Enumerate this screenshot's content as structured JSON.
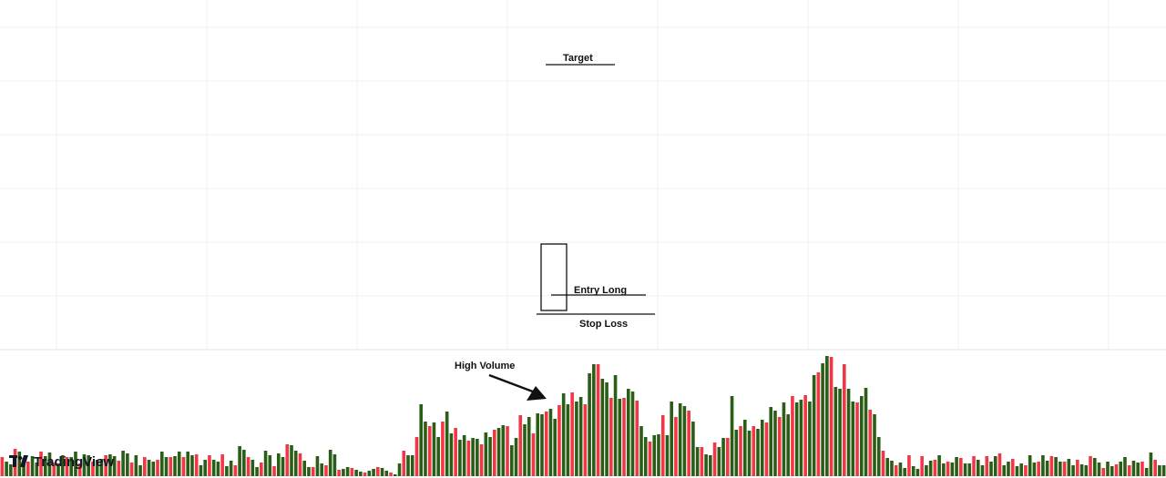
{
  "colors": {
    "up": "#2a5d16",
    "down": "#f23645",
    "grid": "#f0f0f0",
    "separator": "#e6e6e6",
    "annotation": "#111111"
  },
  "branding": {
    "logo_text": "TradingView",
    "logo_icon": "tradingview-logo-icon"
  },
  "annotations": {
    "target": "Target",
    "entry": "Entry Long",
    "stop": "Stop Loss",
    "volume": "High Volume"
  },
  "chart_data": {
    "type": "candlestick",
    "grid": true,
    "price_range": [
      0,
      400
    ],
    "volume_range": [
      0,
      130
    ],
    "candles": [
      [
        0,
        0,
        0,
        0
      ],
      [
        0,
        0,
        0,
        0
      ],
      [
        0,
        0,
        0,
        0
      ],
      [
        0,
        0,
        0,
        0
      ],
      [
        0,
        0,
        0,
        0
      ],
      [
        0,
        0,
        0,
        0
      ],
      [
        0,
        0,
        0,
        0
      ],
      [
        0,
        0,
        0,
        0
      ],
      [
        0,
        0,
        0,
        0
      ],
      [
        0,
        0,
        0,
        0
      ],
      [
        0,
        0,
        0,
        0
      ],
      [
        0,
        0,
        0,
        0
      ],
      [
        0,
        0,
        0,
        0
      ],
      [
        0,
        0,
        0,
        0
      ],
      [
        0,
        0,
        0,
        0
      ],
      [
        0,
        0,
        0,
        0
      ],
      [
        0,
        0,
        0,
        0
      ],
      [
        0,
        0,
        0,
        0
      ],
      [
        0,
        0,
        0,
        0
      ],
      [
        0,
        0,
        0,
        0
      ],
      [
        0,
        0,
        0,
        0
      ],
      [
        0,
        0,
        0,
        0
      ],
      [
        0,
        0,
        0,
        0
      ],
      [
        0,
        0,
        0,
        0
      ],
      [
        0,
        0,
        0,
        0
      ],
      [
        0,
        0,
        0,
        0
      ],
      [
        0,
        0,
        0,
        0
      ],
      [
        0,
        0,
        0,
        0
      ],
      [
        0,
        0,
        0,
        0
      ],
      [
        0,
        0,
        0,
        0
      ],
      [
        0,
        0,
        0,
        0
      ],
      [
        0,
        0,
        0,
        0
      ],
      [
        0,
        0,
        0,
        0
      ],
      [
        0,
        0,
        0,
        0
      ],
      [
        0,
        0,
        0,
        0
      ],
      [
        0,
        0,
        0,
        0
      ],
      [
        0,
        0,
        0,
        0
      ],
      [
        0,
        0,
        0,
        0
      ],
      [
        0,
        0,
        0,
        0
      ],
      [
        0,
        0,
        0,
        0
      ],
      [
        0,
        0,
        0,
        0
      ],
      [
        0,
        0,
        0,
        0
      ],
      [
        0,
        0,
        0,
        0
      ],
      [
        0,
        0,
        0,
        0
      ],
      [
        0,
        0,
        0,
        0
      ],
      [
        0,
        0,
        0,
        0
      ],
      [
        0,
        0,
        0,
        0
      ],
      [
        0,
        0,
        0,
        0
      ],
      [
        0,
        0,
        0,
        0
      ],
      [
        0,
        0,
        0,
        0
      ],
      [
        0,
        0,
        0,
        0
      ],
      [
        0,
        0,
        0,
        0
      ],
      [
        0,
        0,
        0,
        0
      ],
      [
        0,
        0,
        0,
        0
      ],
      [
        0,
        0,
        0,
        0
      ],
      [
        0,
        0,
        0,
        0
      ],
      [
        0,
        0,
        0,
        0
      ],
      [
        0,
        0,
        0,
        0
      ],
      [
        0,
        0,
        0,
        0
      ],
      [
        0,
        0,
        0,
        0
      ],
      [
        0,
        0,
        0,
        0
      ],
      [
        0,
        0,
        0,
        0
      ],
      [
        0,
        0,
        0,
        0
      ],
      [
        0,
        0,
        0,
        0
      ],
      [
        0,
        0,
        0,
        0
      ],
      [
        0,
        0,
        0,
        0
      ],
      [
        0,
        0,
        0,
        0
      ],
      [
        0,
        0,
        0,
        0
      ],
      [
        0,
        0,
        0,
        0
      ],
      [
        0,
        0,
        0,
        0
      ],
      [
        0,
        0,
        0,
        0
      ],
      [
        0,
        0,
        0,
        0
      ],
      [
        0,
        0,
        0,
        0
      ],
      [
        0,
        0,
        0,
        0
      ],
      [
        0,
        0,
        0,
        0
      ],
      [
        0,
        0,
        0,
        0
      ],
      [
        0,
        0,
        0,
        0
      ],
      [
        0,
        0,
        0,
        0
      ],
      [
        0,
        0,
        0,
        0
      ],
      [
        0,
        0,
        0,
        0
      ],
      [
        0,
        0,
        0,
        0
      ],
      [
        0,
        0,
        0,
        0
      ],
      [
        0,
        0,
        0,
        0
      ],
      [
        0,
        0,
        0,
        0
      ],
      [
        0,
        0,
        0,
        0
      ],
      [
        0,
        0,
        0,
        0
      ],
      [
        0,
        0,
        0,
        0
      ],
      [
        0,
        0,
        0,
        0
      ],
      [
        0,
        0,
        0,
        0
      ],
      [
        0,
        0,
        0,
        0
      ],
      [
        0,
        0,
        0,
        0
      ],
      [
        0,
        0,
        0,
        0
      ],
      [
        0,
        0,
        0,
        0
      ],
      [
        0,
        0,
        0,
        0
      ],
      [
        0,
        0,
        0,
        0
      ],
      [
        0,
        0,
        0,
        0
      ],
      [
        0,
        0,
        0,
        0
      ],
      [
        0,
        0,
        0,
        0
      ],
      [
        0,
        0,
        0,
        0
      ],
      [
        0,
        0,
        0,
        0
      ],
      [
        0,
        0,
        0,
        0
      ],
      [
        0,
        0,
        0,
        0
      ],
      [
        0,
        0,
        0,
        0
      ],
      [
        0,
        0,
        0,
        0
      ],
      [
        0,
        0,
        0,
        0
      ],
      [
        0,
        0,
        0,
        0
      ],
      [
        0,
        0,
        0,
        0
      ],
      [
        0,
        0,
        0,
        0
      ],
      [
        0,
        0,
        0,
        0
      ],
      [
        0,
        0,
        0,
        0
      ],
      [
        0,
        0,
        0,
        0
      ],
      [
        0,
        0,
        0,
        0
      ],
      [
        0,
        0,
        0,
        0
      ],
      [
        0,
        0,
        0,
        0
      ],
      [
        0,
        0,
        0,
        0
      ],
      [
        0,
        0,
        0,
        0
      ],
      [
        0,
        0,
        0,
        0
      ],
      [
        0,
        0,
        0,
        0
      ],
      [
        0,
        0,
        0,
        0
      ],
      [
        0,
        0,
        0,
        0
      ],
      [
        0,
        0,
        0,
        0
      ],
      [
        0,
        0,
        0,
        0
      ],
      [
        0,
        0,
        0,
        0
      ],
      [
        0,
        0,
        0,
        0
      ],
      [
        0,
        0,
        0,
        0
      ],
      [
        0,
        0,
        0,
        0
      ],
      [
        0,
        0,
        0,
        0
      ],
      [
        0,
        0,
        0,
        0
      ],
      [
        0,
        0,
        0,
        0
      ],
      [
        0,
        0,
        0,
        0
      ],
      [
        0,
        0,
        0,
        0
      ],
      [
        0,
        0,
        0,
        0
      ],
      [
        0,
        0,
        0,
        0
      ],
      [
        0,
        0,
        0,
        0
      ],
      [
        0,
        0,
        0,
        0
      ],
      [
        0,
        0,
        0,
        0
      ],
      [
        0,
        0,
        0,
        0
      ],
      [
        0,
        0,
        0,
        0
      ],
      [
        0,
        0,
        0,
        0
      ],
      [
        0,
        0,
        0,
        0
      ],
      [
        0,
        0,
        0,
        0
      ],
      [
        0,
        0,
        0,
        0
      ],
      [
        0,
        0,
        0,
        0
      ],
      [
        0,
        0,
        0,
        0
      ],
      [
        0,
        0,
        0,
        0
      ],
      [
        0,
        0,
        0,
        0
      ],
      [
        0,
        0,
        0,
        0
      ],
      [
        0,
        0,
        0,
        0
      ],
      [
        0,
        0,
        0,
        0
      ],
      [
        0,
        0,
        0,
        0
      ],
      [
        0,
        0,
        0,
        0
      ],
      [
        0,
        0,
        0,
        0
      ],
      [
        0,
        0,
        0,
        0
      ],
      [
        0,
        0,
        0,
        0
      ],
      [
        0,
        0,
        0,
        0
      ],
      [
        0,
        0,
        0,
        0
      ],
      [
        0,
        0,
        0,
        0
      ],
      [
        0,
        0,
        0,
        0
      ],
      [
        0,
        0,
        0,
        0
      ],
      [
        0,
        0,
        0,
        0
      ],
      [
        0,
        0,
        0,
        0
      ],
      [
        0,
        0,
        0,
        0
      ],
      [
        0,
        0,
        0,
        0
      ],
      [
        0,
        0,
        0,
        0
      ],
      [
        0,
        0,
        0,
        0
      ],
      [
        0,
        0,
        0,
        0
      ],
      [
        0,
        0,
        0,
        0
      ],
      [
        0,
        0,
        0,
        0
      ],
      [
        0,
        0,
        0,
        0
      ],
      [
        0,
        0,
        0,
        0
      ],
      [
        0,
        0,
        0,
        0
      ],
      [
        0,
        0,
        0,
        0
      ],
      [
        0,
        0,
        0,
        0
      ],
      [
        0,
        0,
        0,
        0
      ],
      [
        0,
        0,
        0,
        0
      ],
      [
        0,
        0,
        0,
        0
      ],
      [
        0,
        0,
        0,
        0
      ],
      [
        0,
        0,
        0,
        0
      ],
      [
        0,
        0,
        0,
        0
      ],
      [
        0,
        0,
        0,
        0
      ],
      [
        0,
        0,
        0,
        0
      ],
      [
        0,
        0,
        0,
        0
      ],
      [
        0,
        0,
        0,
        0
      ],
      [
        0,
        0,
        0,
        0
      ],
      [
        0,
        0,
        0,
        0
      ],
      [
        0,
        0,
        0,
        0
      ],
      [
        0,
        0,
        0,
        0
      ],
      [
        0,
        0,
        0,
        0
      ],
      [
        0,
        0,
        0,
        0
      ],
      [
        0,
        0,
        0,
        0
      ],
      [
        0,
        0,
        0,
        0
      ],
      [
        0,
        0,
        0,
        0
      ],
      [
        0,
        0,
        0,
        0
      ],
      [
        0,
        0,
        0,
        0
      ],
      [
        0,
        0,
        0,
        0
      ],
      [
        0,
        0,
        0,
        0
      ],
      [
        0,
        0,
        0,
        0
      ],
      [
        0,
        0,
        0,
        0
      ],
      [
        0,
        0,
        0,
        0
      ],
      [
        0,
        0,
        0,
        0
      ],
      [
        0,
        0,
        0,
        0
      ],
      [
        0,
        0,
        0,
        0
      ],
      [
        0,
        0,
        0,
        0
      ],
      [
        0,
        0,
        0,
        0
      ],
      [
        0,
        0,
        0,
        0
      ],
      [
        0,
        0,
        0,
        0
      ],
      [
        0,
        0,
        0,
        0
      ],
      [
        0,
        0,
        0,
        0
      ],
      [
        0,
        0,
        0,
        0
      ],
      [
        0,
        0,
        0,
        0
      ],
      [
        0,
        0,
        0,
        0
      ],
      [
        0,
        0,
        0,
        0
      ],
      [
        0,
        0,
        0,
        0
      ],
      [
        0,
        0,
        0,
        0
      ],
      [
        0,
        0,
        0,
        0
      ],
      [
        0,
        0,
        0,
        0
      ],
      [
        0,
        0,
        0,
        0
      ],
      [
        0,
        0,
        0,
        0
      ],
      [
        0,
        0,
        0,
        0
      ],
      [
        0,
        0,
        0,
        0
      ],
      [
        0,
        0,
        0,
        0
      ],
      [
        0,
        0,
        0,
        0
      ],
      [
        0,
        0,
        0,
        0
      ],
      [
        0,
        0,
        0,
        0
      ],
      [
        0,
        0,
        0,
        0
      ],
      [
        0,
        0,
        0,
        0
      ],
      [
        0,
        0,
        0,
        0
      ],
      [
        0,
        0,
        0,
        0
      ],
      [
        0,
        0,
        0,
        0
      ],
      [
        0,
        0,
        0,
        0
      ],
      [
        0,
        0,
        0,
        0
      ],
      [
        0,
        0,
        0,
        0
      ],
      [
        0,
        0,
        0,
        0
      ],
      [
        0,
        0,
        0,
        0
      ],
      [
        0,
        0,
        0,
        0
      ],
      [
        0,
        0,
        0,
        0
      ],
      [
        0,
        0,
        0,
        0
      ],
      [
        0,
        0,
        0,
        0
      ],
      [
        0,
        0,
        0,
        0
      ],
      [
        0,
        0,
        0,
        0
      ],
      [
        0,
        0,
        0,
        0
      ],
      [
        0,
        0,
        0,
        0
      ],
      [
        0,
        0,
        0,
        0
      ],
      [
        0,
        0,
        0,
        0
      ],
      [
        0,
        0,
        0,
        0
      ],
      [
        0,
        0,
        0,
        0
      ],
      [
        0,
        0,
        0,
        0
      ],
      [
        0,
        0,
        0,
        0
      ],
      [
        0,
        0,
        0,
        0
      ],
      [
        0,
        0,
        0,
        0
      ],
      [
        0,
        0,
        0,
        0
      ],
      [
        0,
        0,
        0,
        0
      ]
    ],
    "volume": [
      21,
      16,
      13,
      30,
      27,
      20,
      16,
      22,
      15,
      27,
      22,
      26,
      15,
      14,
      23,
      21,
      21,
      27,
      14,
      24,
      23,
      16,
      18,
      19,
      23,
      24,
      22,
      17,
      28,
      25,
      15,
      23,
      12,
      21,
      18,
      16,
      18,
      27,
      21,
      21,
      22,
      27,
      21,
      27,
      23,
      24,
      12,
      18,
      23,
      18,
      16,
      24,
      11,
      17,
      12,
      33,
      29,
      21,
      18,
      10,
      15,
      28,
      23,
      11,
      25,
      21,
      35,
      34,
      28,
      25,
      17,
      10,
      10,
      22,
      14,
      12,
      29,
      24,
      7,
      8,
      10,
      9,
      7,
      5,
      4,
      6,
      8,
      10,
      9,
      6,
      4,
      2,
      14,
      28,
      23,
      23,
      43,
      79,
      60,
      55,
      59,
      43,
      60,
      71,
      47,
      53,
      40,
      45,
      39,
      42,
      41,
      35,
      48,
      43,
      51,
      53,
      56,
      55,
      34,
      42,
      67,
      57,
      65,
      47,
      69,
      68,
      71,
      74,
      63,
      78,
      91,
      79,
      92,
      82,
      87,
      79,
      113,
      123,
      123,
      107,
      103,
      86,
      111,
      85,
      86,
      96,
      93,
      83,
      55,
      43,
      38,
      45,
      46,
      67,
      45,
      82,
      65,
      80,
      77,
      72,
      60,
      32,
      32,
      24,
      23,
      37,
      32,
      42,
      42,
      88,
      51,
      55,
      62,
      50,
      55,
      52,
      62,
      59,
      76,
      72,
      65,
      81,
      68,
      88,
      81,
      84,
      89,
      82,
      111,
      114,
      124,
      132,
      131,
      98,
      96,
      123,
      96,
      82,
      81,
      88,
      97,
      73,
      68,
      43,
      28,
      20,
      17,
      12,
      15,
      9,
      23,
      11,
      8,
      22,
      12,
      17,
      18,
      23,
      14,
      16,
      15,
      21,
      20,
      14,
      14,
      22,
      18,
      12,
      22,
      16,
      22,
      25,
      12,
      16,
      19,
      11,
      14,
      12,
      23,
      15,
      16,
      23,
      17,
      22,
      21,
      16,
      16,
      19,
      12,
      18,
      13,
      12,
      22,
      20,
      15,
      9,
      16,
      11,
      13,
      16,
      21,
      12,
      17,
      15,
      16,
      9,
      26,
      18,
      12,
      12
    ]
  }
}
